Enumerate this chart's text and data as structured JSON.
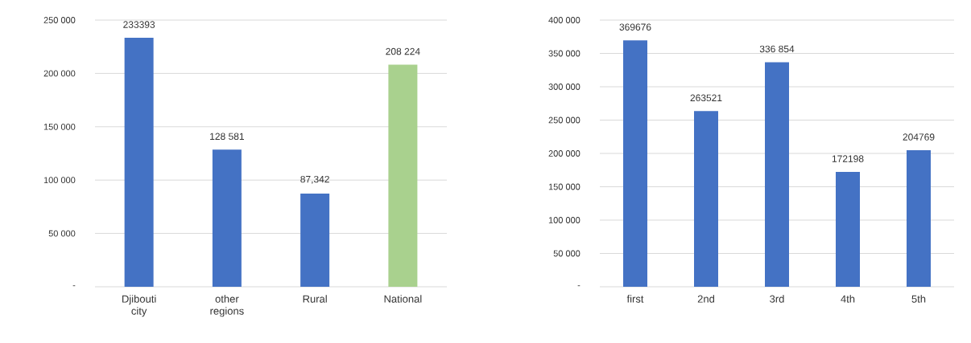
{
  "chart_data": [
    {
      "type": "bar",
      "categories": [
        "Djibouti city",
        "other regions",
        "Rural",
        "National"
      ],
      "values": [
        233393,
        128581,
        87342,
        208224
      ],
      "colors": [
        "#4472c4",
        "#4472c4",
        "#4472c4",
        "#a9d18e"
      ],
      "value_labels": [
        "233393",
        "128 581",
        "87,342",
        "208 224"
      ],
      "ylim": [
        0,
        250000
      ],
      "yticks": [
        {
          "value": 0,
          "label": "-"
        },
        {
          "value": 50000,
          "label": "50 000"
        },
        {
          "value": 100000,
          "label": "100 000"
        },
        {
          "value": 150000,
          "label": "150 000"
        },
        {
          "value": 200000,
          "label": "200 000"
        },
        {
          "value": 250000,
          "label": "250 000"
        }
      ],
      "grid": "y"
    },
    {
      "type": "bar",
      "categories": [
        "first",
        "2nd",
        "3rd",
        "4th",
        "5th"
      ],
      "values": [
        369676,
        263521,
        336854,
        172198,
        204769
      ],
      "colors": [
        "#4472c4",
        "#4472c4",
        "#4472c4",
        "#4472c4",
        "#4472c4"
      ],
      "value_labels": [
        "369676",
        "263521",
        "336 854",
        "172198",
        "204769"
      ],
      "ylim": [
        0,
        400000
      ],
      "yticks": [
        {
          "value": 0,
          "label": "-"
        },
        {
          "value": 50000,
          "label": "50 000"
        },
        {
          "value": 100000,
          "label": "100 000"
        },
        {
          "value": 150000,
          "label": "150 000"
        },
        {
          "value": 200000,
          "label": "200 000"
        },
        {
          "value": 250000,
          "label": "250 000"
        },
        {
          "value": 300000,
          "label": "300 000"
        },
        {
          "value": 350000,
          "label": "350 000"
        },
        {
          "value": 400000,
          "label": "400 000"
        }
      ],
      "grid": "y"
    }
  ]
}
